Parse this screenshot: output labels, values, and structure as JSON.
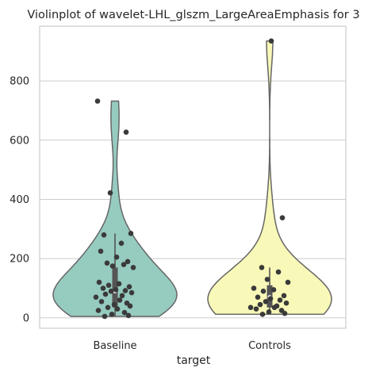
{
  "chart_data": {
    "type": "violin",
    "title": "Violinplot of wavelet-LHL_glszm_LargeAreaEmphasis for 3",
    "xlabel": "target",
    "ylabel": "",
    "ylim": [
      -35,
      985
    ],
    "yticks": [
      0,
      200,
      400,
      600,
      800
    ],
    "grid": true,
    "categories": [
      "Baseline",
      "Controls"
    ],
    "colors": [
      "#96cbc0",
      "#f8f8b8"
    ],
    "violins": [
      {
        "name": "Baseline",
        "min": 5,
        "max": 732,
        "q1": 35,
        "median": 90,
        "q3": 170,
        "whisker_low": 5,
        "whisker_high": 285,
        "points": [
          732,
          627,
          422,
          285,
          280,
          252,
          225,
          205,
          190,
          185,
          180,
          175,
          170,
          120,
          115,
          110,
          105,
          100,
          95,
          92,
          90,
          85,
          80,
          75,
          70,
          60,
          55,
          50,
          45,
          40,
          35,
          30,
          25,
          18,
          12,
          8,
          5
        ]
      },
      {
        "name": "Controls",
        "min": 12,
        "max": 935,
        "q1": 35,
        "median": 70,
        "q3": 110,
        "whisker_low": 12,
        "whisker_high": 170,
        "points": [
          935,
          338,
          170,
          155,
          130,
          120,
          100,
          95,
          90,
          75,
          70,
          65,
          60,
          55,
          50,
          45,
          40,
          35,
          35,
          30,
          25,
          20,
          15,
          12
        ]
      }
    ]
  }
}
